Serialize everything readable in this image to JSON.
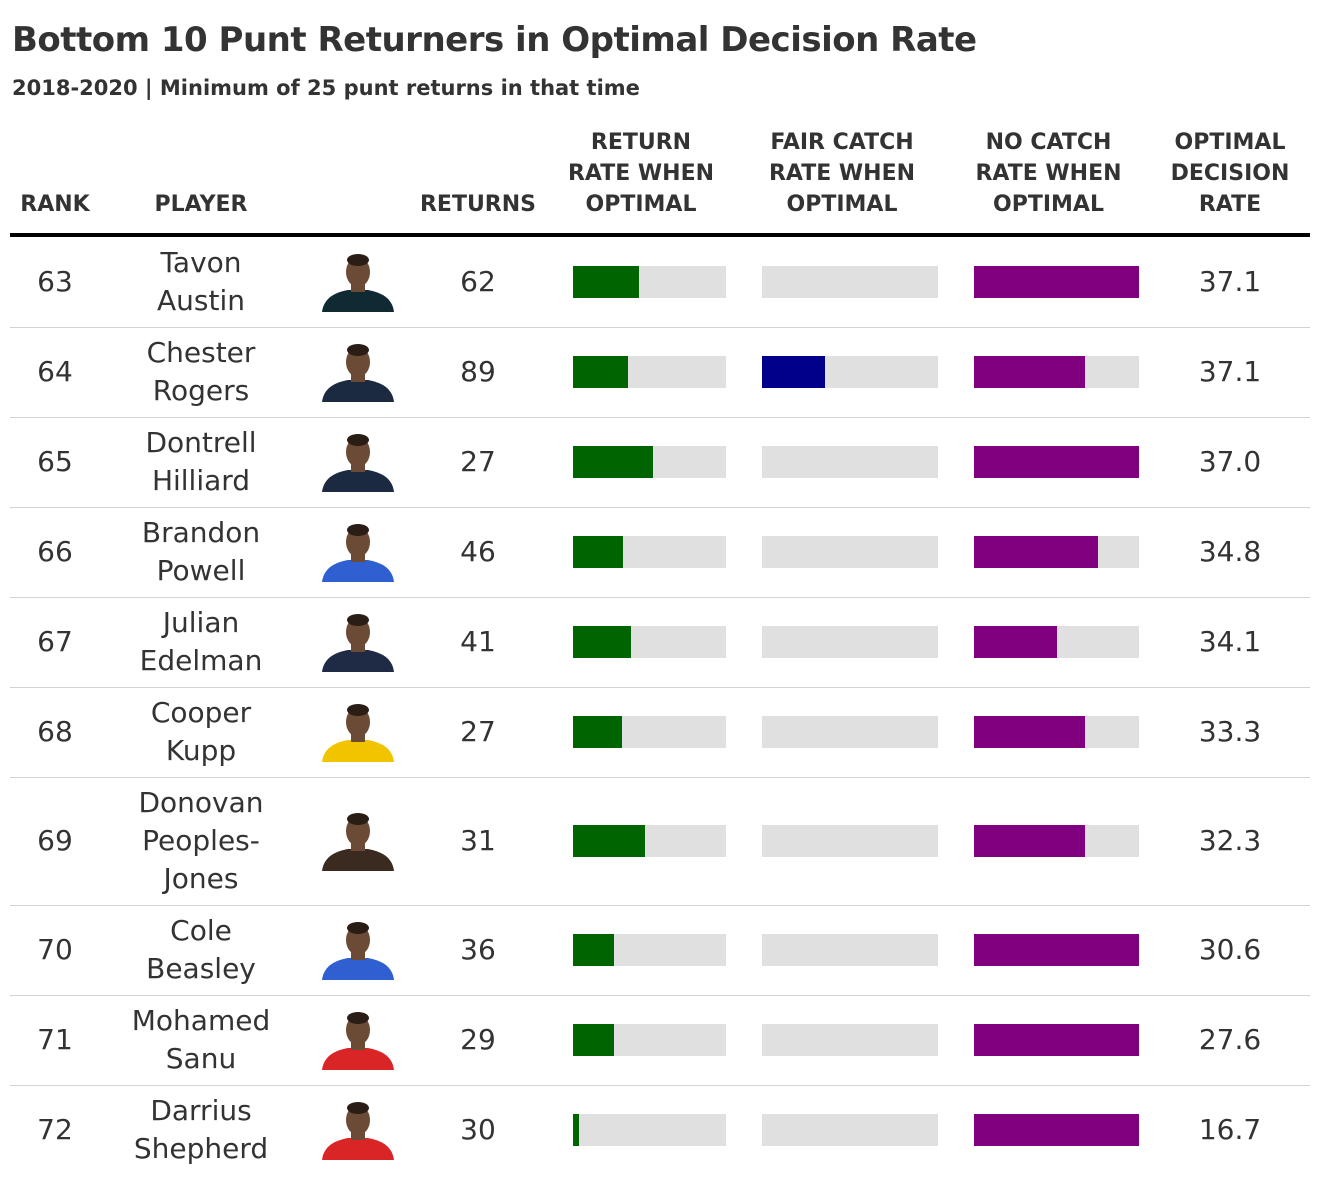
{
  "title": "Bottom 10 Punt Returners in Optimal Decision Rate",
  "subtitle": "2018-2020 | Minimum of 25 punt returns in that time",
  "headers": {
    "rank": "RANK",
    "player": "PLAYER",
    "returns": "RETURNS",
    "return_rate": "RETURN RATE WHEN OPTIMAL",
    "fair_catch_rate": "FAIR CATCH RATE WHEN OPTIMAL",
    "no_catch_rate": "NO CATCH RATE WHEN OPTIMAL",
    "optimal_rate": "OPTIMAL DECISION RATE"
  },
  "colors": {
    "return": "#006400",
    "fair_catch": "#00008b",
    "no_catch": "#800080",
    "bar_background": "#e0e0e0",
    "jersey_jaguars": "#0f2a33",
    "jersey_seahawks": "#1b2a41",
    "jersey_bills": "#2f5fd0",
    "jersey_patriots": "#1f2a44",
    "jersey_rams": "#f2c400",
    "jersey_browns": "#3a2a20",
    "jersey_chiefs": "#d92525"
  },
  "chart_data": {
    "type": "table",
    "title": "Bottom 10 Punt Returners in Optimal Decision Rate",
    "subtitle": "2018-2020 | Minimum of 25 punt returns in that time",
    "columns": [
      "RANK",
      "PLAYER",
      "RETURNS",
      "RETURN RATE WHEN OPTIMAL",
      "FAIR CATCH RATE WHEN OPTIMAL",
      "NO CATCH RATE WHEN OPTIMAL",
      "OPTIMAL DECISION RATE"
    ],
    "rows": [
      {
        "rank": "63",
        "player": "Tavon Austin",
        "returns": "62",
        "return_rate": 0.43,
        "fair_catch_rate": 0.0,
        "no_catch_rate": 1.0,
        "optimal_rate": "37.1",
        "headshot": "player-headshot-icon",
        "jersey": "jaguars"
      },
      {
        "rank": "64",
        "player": "Chester Rogers",
        "returns": "89",
        "return_rate": 0.36,
        "fair_catch_rate": 0.36,
        "no_catch_rate": 0.67,
        "optimal_rate": "37.1",
        "headshot": "player-headshot-icon",
        "jersey": "seahawks"
      },
      {
        "rank": "65",
        "player": "Dontrell Hilliard",
        "returns": "27",
        "return_rate": 0.52,
        "fair_catch_rate": 0.0,
        "no_catch_rate": 1.0,
        "optimal_rate": "37.0",
        "headshot": "player-headshot-icon",
        "jersey": "seahawks"
      },
      {
        "rank": "66",
        "player": "Brandon Powell",
        "returns": "46",
        "return_rate": 0.33,
        "fair_catch_rate": 0.0,
        "no_catch_rate": 0.75,
        "optimal_rate": "34.8",
        "headshot": "player-headshot-icon",
        "jersey": "bills"
      },
      {
        "rank": "67",
        "player": "Julian Edelman",
        "returns": "41",
        "return_rate": 0.38,
        "fair_catch_rate": 0.0,
        "no_catch_rate": 0.5,
        "optimal_rate": "34.1",
        "headshot": "player-headshot-icon",
        "jersey": "patriots"
      },
      {
        "rank": "68",
        "player": "Cooper Kupp",
        "returns": "27",
        "return_rate": 0.32,
        "fair_catch_rate": 0.0,
        "no_catch_rate": 0.67,
        "optimal_rate": "33.3",
        "headshot": "player-headshot-icon",
        "jersey": "rams"
      },
      {
        "rank": "69",
        "player": "Donovan Peoples-Jones",
        "returns": "31",
        "return_rate": 0.47,
        "fair_catch_rate": 0.0,
        "no_catch_rate": 0.67,
        "optimal_rate": "32.3",
        "headshot": "player-headshot-icon",
        "jersey": "browns"
      },
      {
        "rank": "70",
        "player": "Cole Beasley",
        "returns": "36",
        "return_rate": 0.27,
        "fair_catch_rate": 0.0,
        "no_catch_rate": 1.0,
        "optimal_rate": "30.6",
        "headshot": "player-headshot-icon",
        "jersey": "bills"
      },
      {
        "rank": "71",
        "player": "Mohamed Sanu",
        "returns": "29",
        "return_rate": 0.27,
        "fair_catch_rate": 0.0,
        "no_catch_rate": 1.0,
        "optimal_rate": "27.6",
        "headshot": "player-headshot-icon",
        "jersey": "chiefs"
      },
      {
        "rank": "72",
        "player": "Darrius Shepherd",
        "returns": "30",
        "return_rate": 0.04,
        "fair_catch_rate": 0.0,
        "no_catch_rate": 1.0,
        "optimal_rate": "16.7",
        "headshot": "player-headshot-icon",
        "jersey": "chiefs"
      }
    ]
  }
}
